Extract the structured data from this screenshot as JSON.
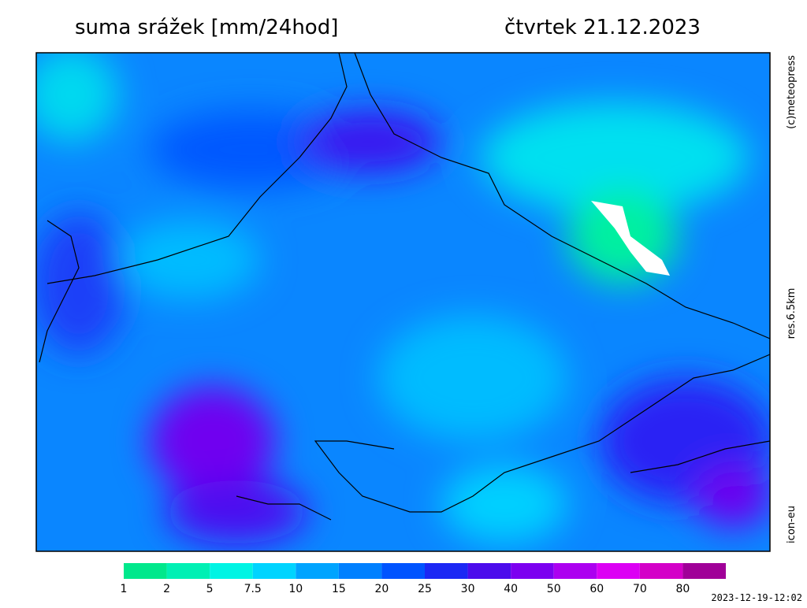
{
  "header": {
    "title": "suma srážek [mm/24hod]",
    "date": "čtvrtek 21.12.2023"
  },
  "side_labels": {
    "copyright": "(c)meteopress",
    "resolution": "res.6.5km",
    "model": "icon-eu"
  },
  "legend": {
    "items": [
      {
        "value": 1,
        "color": "#00e88c"
      },
      {
        "value": 2,
        "color": "#00f0b4"
      },
      {
        "value": 5,
        "color": "#00f4e4"
      },
      {
        "value": 7.5,
        "color": "#00d4ff"
      },
      {
        "value": 10,
        "color": "#00a4ff"
      },
      {
        "value": 15,
        "color": "#0080ff"
      },
      {
        "value": 20,
        "color": "#0054ff"
      },
      {
        "value": 25,
        "color": "#1c28f4"
      },
      {
        "value": 30,
        "color": "#4c0cec"
      },
      {
        "value": 40,
        "color": "#7c00f0"
      },
      {
        "value": 50,
        "color": "#ac00f0"
      },
      {
        "value": 60,
        "color": "#dc00f4"
      },
      {
        "value": 70,
        "color": "#d400c8"
      },
      {
        "value": 80,
        "color": "#a00098"
      }
    ]
  },
  "timestamp": "2023-12-19-12:02"
}
